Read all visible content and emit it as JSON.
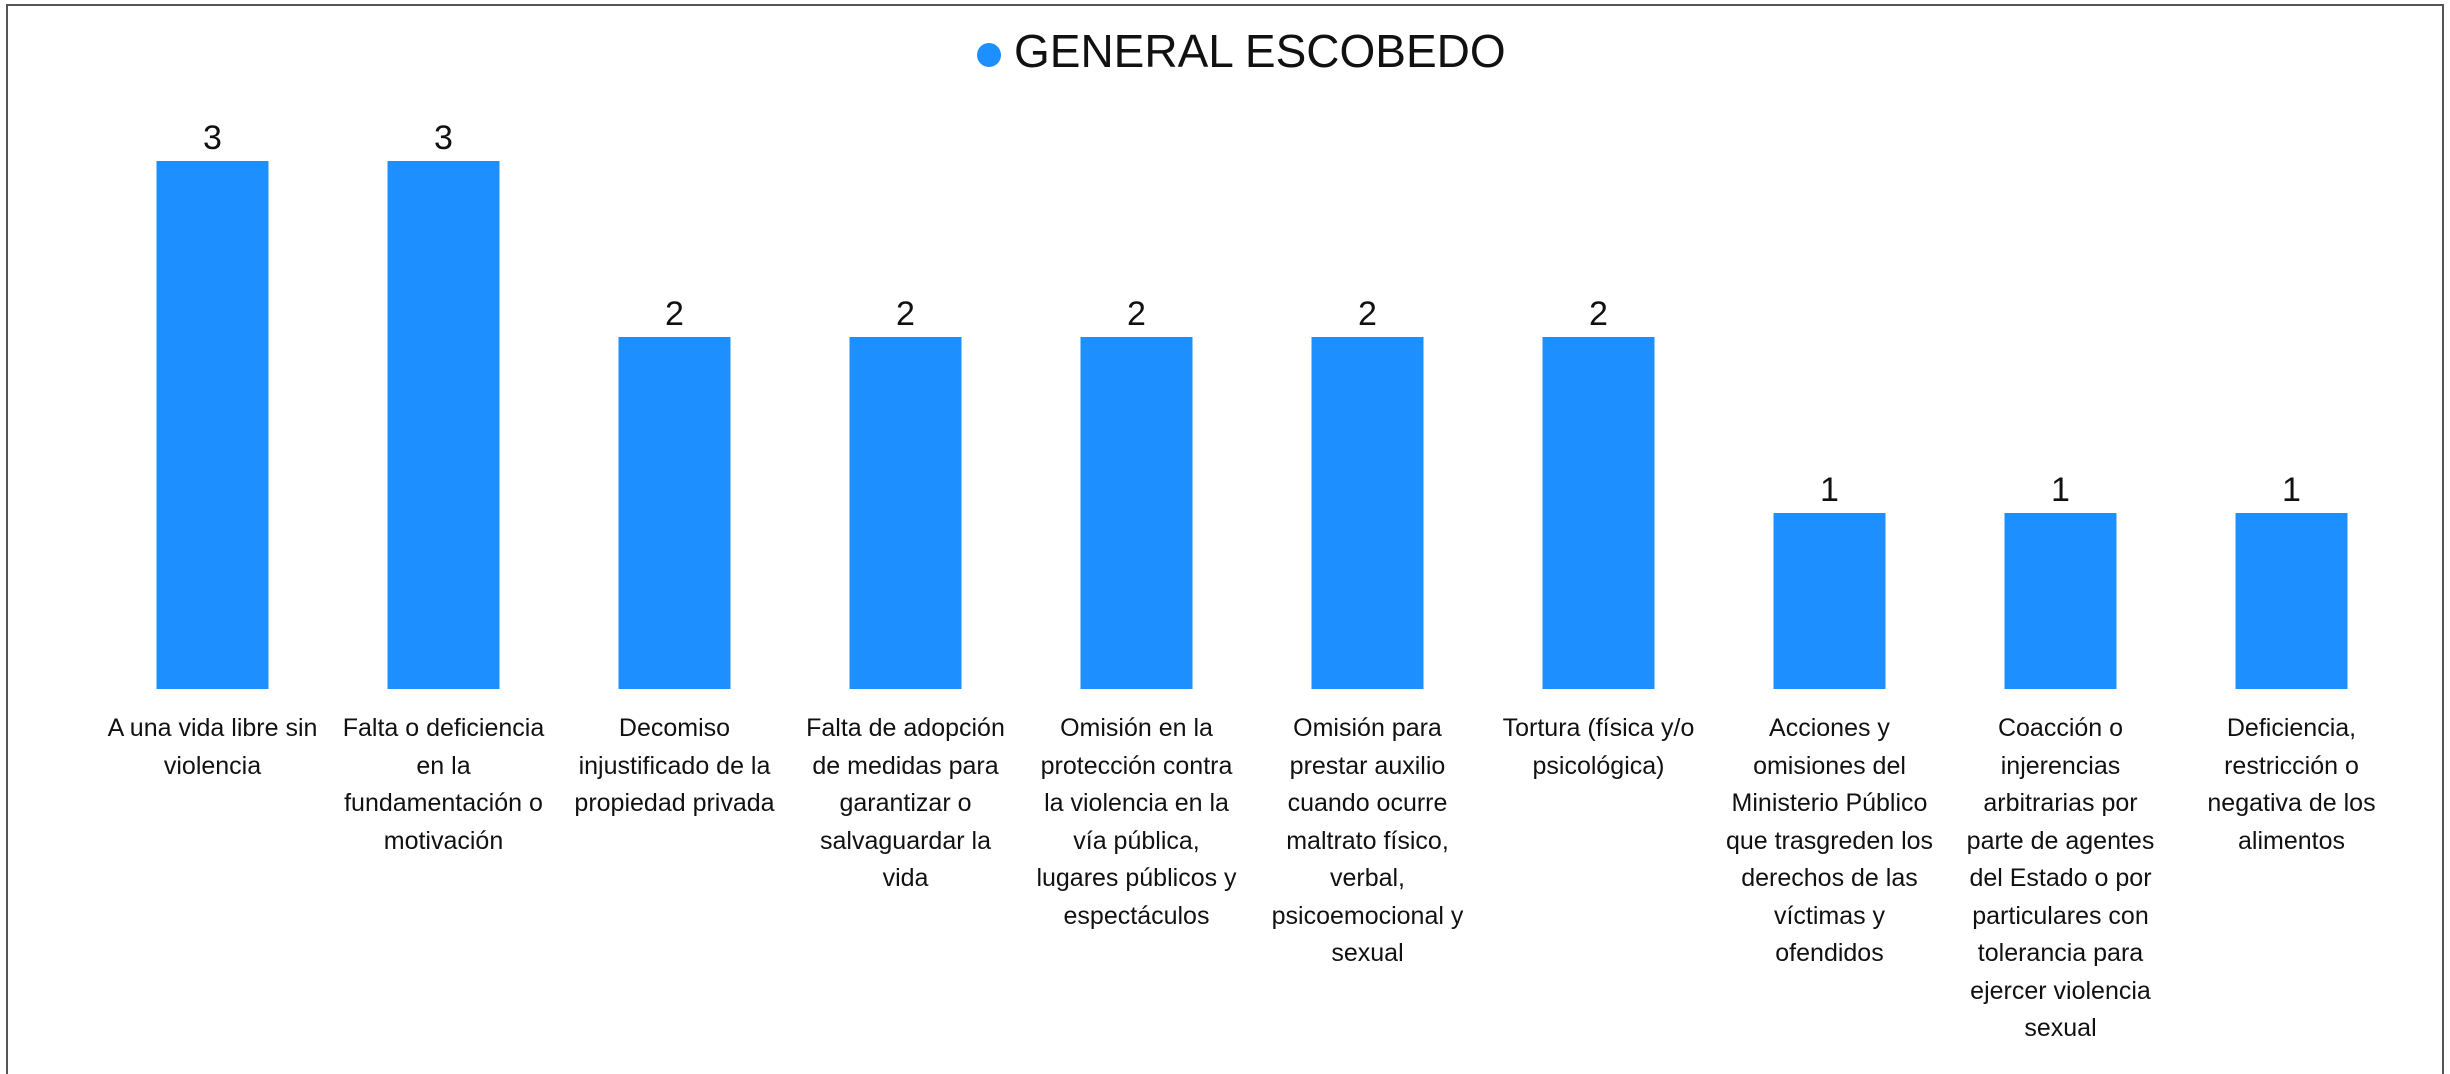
{
  "chart_data": {
    "type": "bar",
    "categories": [
      "A una vida libre sin violencia",
      "Falta o deficiencia en la fundamentación o motivación",
      "Decomiso injustificado de la propiedad privada",
      "Falta de adopción de medidas para garantizar o salvaguardar la vida",
      "Omisión en la protección contra la violencia en la vía pública, lugares públicos y espectáculos",
      "Omisión para prestar auxilio cuando ocurre maltrato físico, verbal, psicoemocional y sexual",
      "Tortura (física y/o psicológica)",
      "Acciones y omisiones del Ministerio Público que trasgreden los derechos de las víctimas y ofendidos",
      "Coacción o injerencias arbitrarias por parte de agentes del Estado o por particulares con tolerancia para ejercer violencia sexual",
      "Deficiencia, restricción o negativa de los alimentos"
    ],
    "series": [
      {
        "name": "GENERAL ESCOBEDO",
        "color": "#1e8fff",
        "values": [
          3,
          3,
          2,
          2,
          2,
          2,
          2,
          1,
          1,
          1
        ]
      }
    ],
    "ylim": [
      0,
      3
    ],
    "legend": "top"
  }
}
